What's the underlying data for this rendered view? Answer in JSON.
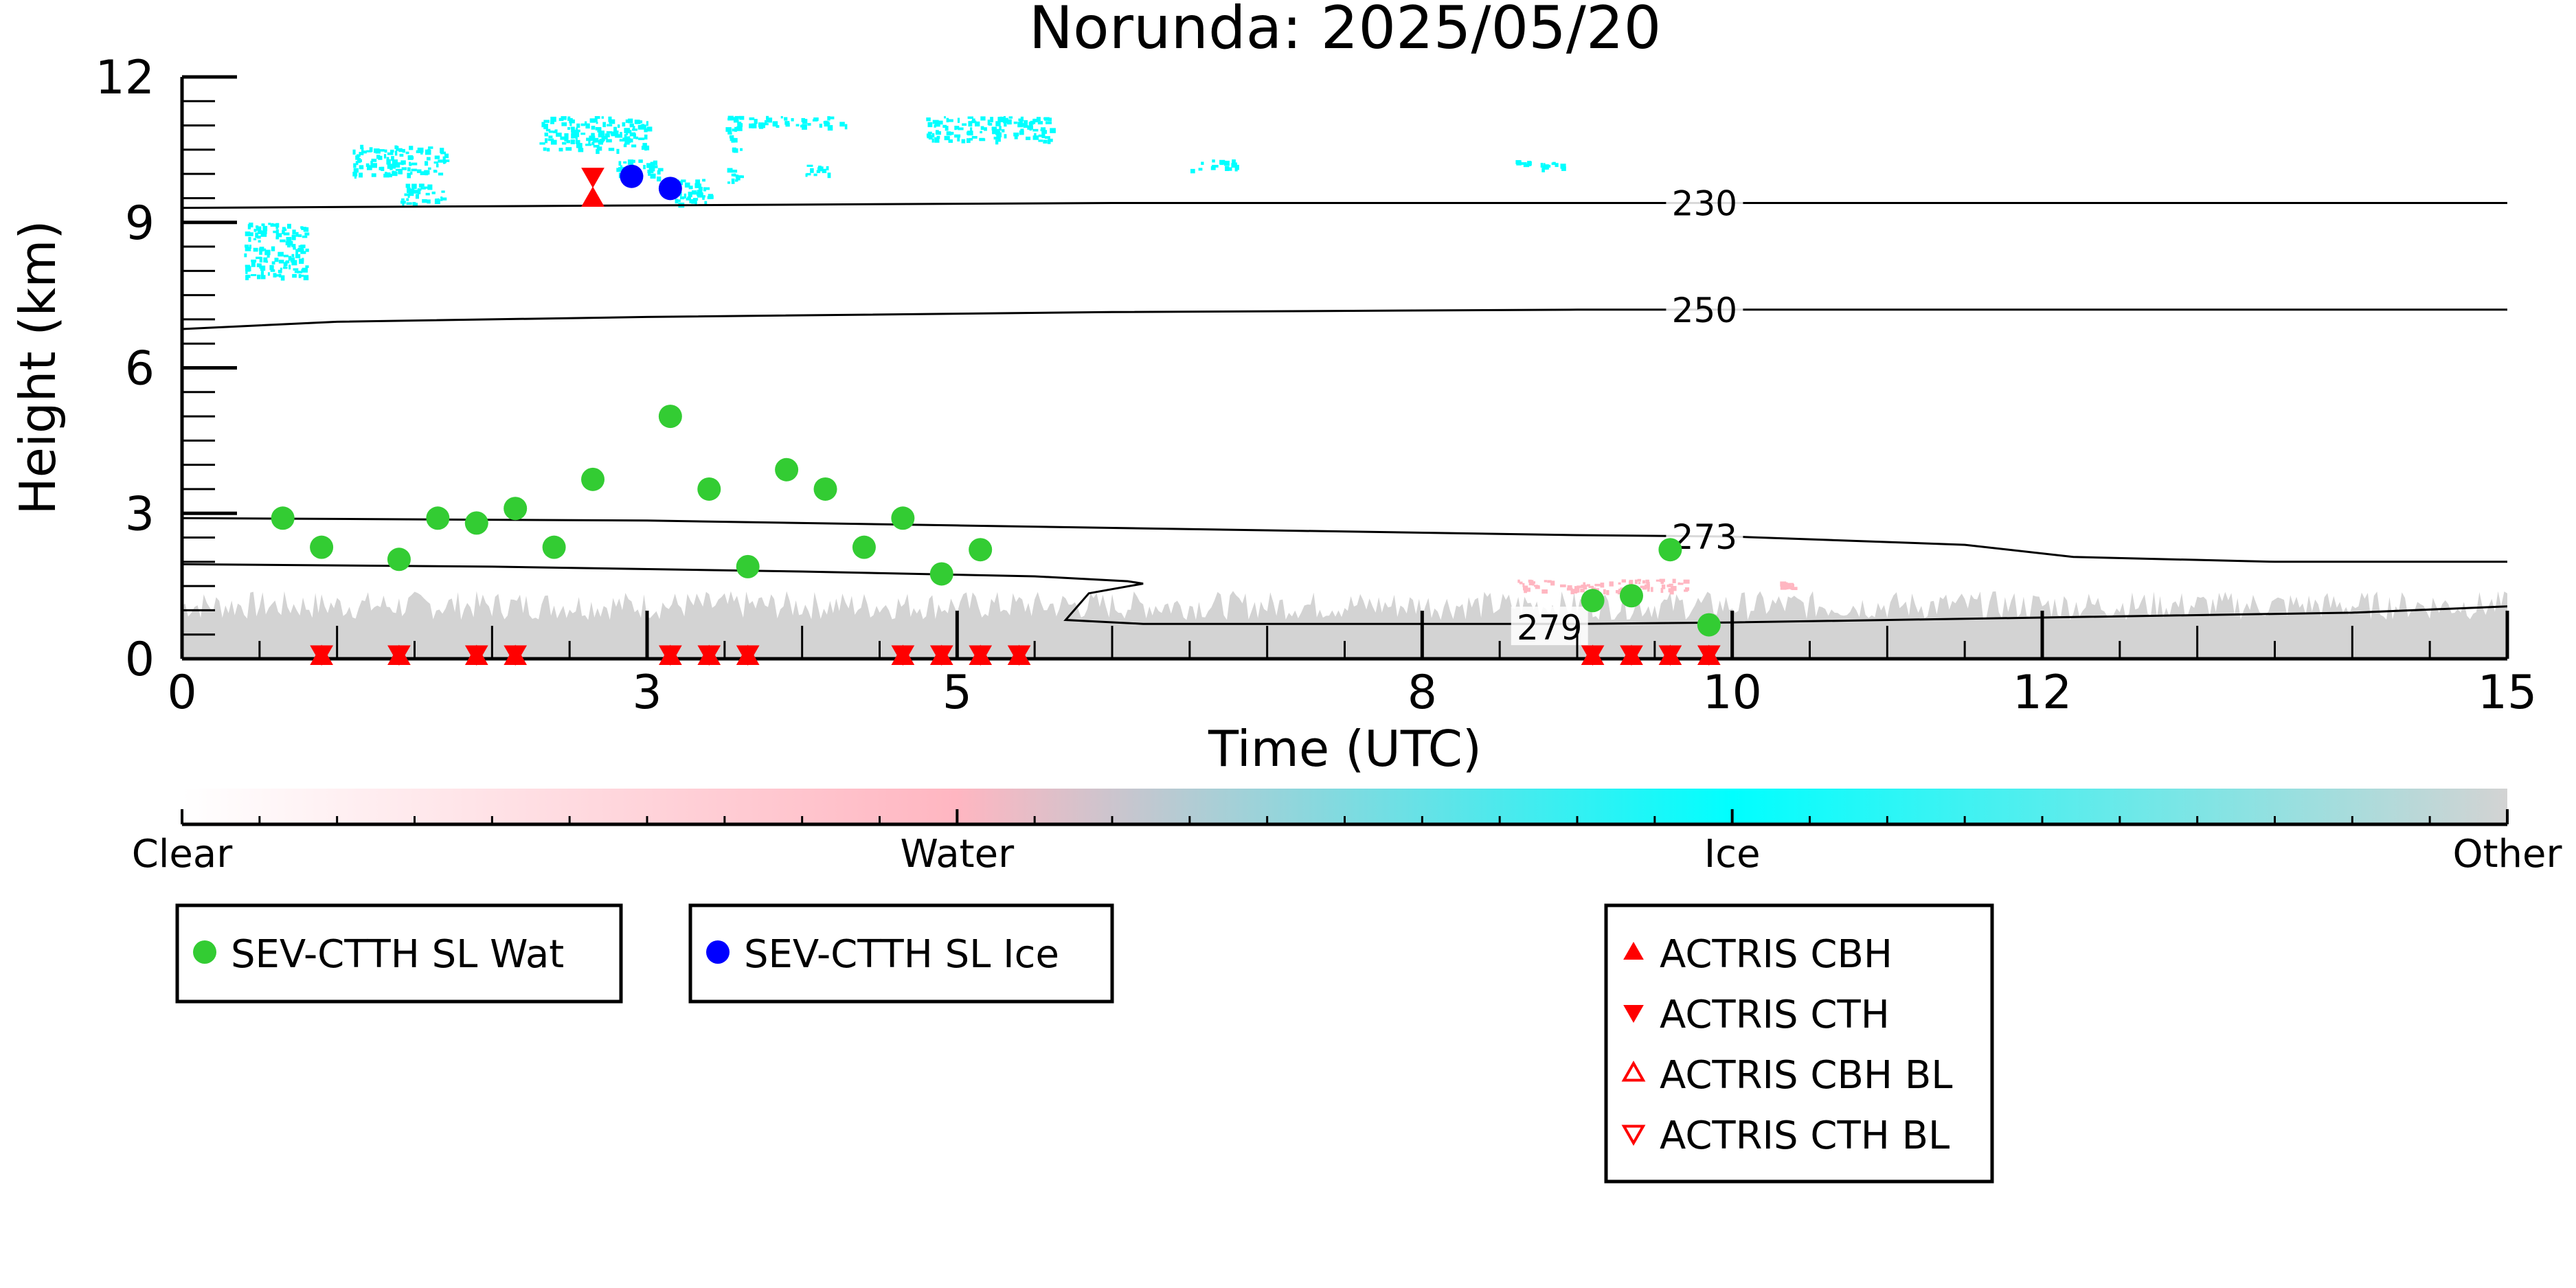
{
  "chart_data": {
    "type": "scatter",
    "title": "Norunda: 2025/05/20",
    "xlabel": "Time (UTC)",
    "ylabel": "Height (km)",
    "xlim": [
      0,
      15
    ],
    "ylim": [
      0,
      12
    ],
    "x_ticks": [
      0,
      3,
      5,
      8,
      10,
      12,
      15
    ],
    "y_ticks": [
      0,
      3,
      6,
      9,
      12
    ],
    "colorbar": {
      "labels": [
        "Clear",
        "Water",
        "Ice",
        "Other"
      ],
      "colors": [
        "#ffffff",
        "#ffb6c1",
        "#00ffff",
        "#d3d3d3"
      ]
    },
    "isotherms": [
      {
        "label": "230",
        "points": [
          [
            0,
            9.3
          ],
          [
            3,
            9.35
          ],
          [
            6,
            9.4
          ],
          [
            9,
            9.4
          ],
          [
            12,
            9.4
          ],
          [
            15,
            9.4
          ]
        ],
        "label_at": [
          9.6,
          9.4
        ]
      },
      {
        "label": "250",
        "points": [
          [
            0,
            6.8
          ],
          [
            1,
            6.95
          ],
          [
            3,
            7.05
          ],
          [
            6,
            7.15
          ],
          [
            9,
            7.2
          ],
          [
            12,
            7.2
          ],
          [
            15,
            7.2
          ]
        ],
        "label_at": [
          9.6,
          7.2
        ]
      },
      {
        "label": "273",
        "points": [
          [
            0,
            2.9
          ],
          [
            3,
            2.85
          ],
          [
            5,
            2.75
          ],
          [
            7,
            2.65
          ],
          [
            9,
            2.55
          ],
          [
            10,
            2.52
          ],
          [
            11.5,
            2.35
          ],
          [
            12.2,
            2.1
          ],
          [
            13.5,
            2.0
          ],
          [
            15,
            2.0
          ]
        ],
        "label_at": [
          9.6,
          2.52
        ]
      },
      {
        "label": "279",
        "points": [
          [
            0,
            1.95
          ],
          [
            2,
            1.9
          ],
          [
            4,
            1.8
          ],
          [
            5.5,
            1.7
          ],
          [
            6.1,
            1.6
          ],
          [
            6.2,
            1.55
          ],
          [
            5.85,
            1.35
          ],
          [
            5.7,
            0.8
          ],
          [
            6.2,
            0.72
          ],
          [
            8,
            0.72
          ],
          [
            9,
            0.72
          ],
          [
            10,
            0.75
          ],
          [
            12,
            0.85
          ],
          [
            14,
            0.95
          ],
          [
            15,
            1.08
          ]
        ],
        "label_at": [
          8.6,
          0.65
        ]
      }
    ],
    "background_fill": {
      "category": "Other",
      "x_range": [
        0,
        15
      ],
      "top_min": 0.8,
      "top_max": 1.4
    },
    "ice_regions": [
      {
        "x": [
          0.4,
          0.8
        ],
        "y": [
          7.9,
          9.0
        ]
      },
      {
        "x": [
          1.1,
          1.7
        ],
        "y": [
          10.0,
          10.6
        ]
      },
      {
        "x": [
          1.4,
          1.7
        ],
        "y": [
          9.4,
          9.8
        ]
      },
      {
        "x": [
          2.3,
          3.0
        ],
        "y": [
          10.5,
          11.2
        ]
      },
      {
        "x": [
          2.8,
          3.1
        ],
        "y": [
          9.9,
          10.3
        ]
      },
      {
        "x": [
          3.1,
          3.4
        ],
        "y": [
          9.4,
          9.9
        ]
      },
      {
        "x": [
          3.5,
          3.6
        ],
        "y": [
          9.8,
          10.2
        ]
      },
      {
        "x": [
          3.5,
          3.6
        ],
        "y": [
          10.5,
          11.0
        ]
      },
      {
        "x": [
          4.0,
          4.2
        ],
        "y": [
          10.0,
          10.2
        ]
      },
      {
        "x": [
          3.5,
          4.3
        ],
        "y": [
          11.0,
          11.2
        ]
      },
      {
        "x": [
          4.8,
          5.6
        ],
        "y": [
          10.7,
          11.2
        ]
      },
      {
        "x": [
          6.5,
          6.8
        ],
        "y": [
          10.1,
          10.3
        ]
      },
      {
        "x": [
          8.6,
          8.9
        ],
        "y": [
          10.1,
          10.3
        ]
      }
    ],
    "water_regions": [
      {
        "x": [
          8.6,
          9.7
        ],
        "y": [
          1.4,
          1.65
        ]
      },
      {
        "x": [
          10.3,
          10.4
        ],
        "y": [
          1.45,
          1.6
        ]
      }
    ],
    "series": [
      {
        "name": "SEV-CTTH SL Wat",
        "color": "#33cc33",
        "marker": "circle",
        "x": [
          0.65,
          0.9,
          1.4,
          1.65,
          1.9,
          2.15,
          2.4,
          2.65,
          3.15,
          3.4,
          3.65,
          3.9,
          4.15,
          4.4,
          4.65,
          4.9,
          5.15,
          9.1,
          9.35,
          9.6,
          9.85
        ],
        "y": [
          2.9,
          2.3,
          2.05,
          2.9,
          2.8,
          3.1,
          2.3,
          3.7,
          5.0,
          3.5,
          1.9,
          3.9,
          3.5,
          2.3,
          2.9,
          1.75,
          2.25,
          1.2,
          1.3,
          2.25,
          0.7
        ]
      },
      {
        "name": "SEV-CTTH SL Ice",
        "color": "#0000ff",
        "marker": "circle",
        "x": [
          2.9,
          3.15
        ],
        "y": [
          9.95,
          9.7
        ]
      },
      {
        "name": "ACTRIS CBH",
        "color": "#ff0000",
        "marker": "triangle-up",
        "x": [
          2.65,
          0.9,
          1.4,
          1.9,
          2.15,
          3.15,
          3.4,
          3.65,
          4.65,
          4.9,
          5.15,
          5.4,
          9.1,
          9.35,
          9.6,
          9.85
        ],
        "y": [
          9.5,
          0.05,
          0.05,
          0.05,
          0.05,
          0.05,
          0.05,
          0.05,
          0.05,
          0.05,
          0.05,
          0.05,
          0.05,
          0.05,
          0.05,
          0.05
        ]
      },
      {
        "name": "ACTRIS CTH",
        "color": "#ff0000",
        "marker": "triangle-down",
        "x": [
          2.65,
          0.9,
          1.4,
          1.9,
          2.15,
          3.15,
          3.4,
          3.65,
          4.65,
          4.9,
          5.15,
          5.4,
          9.1,
          9.35,
          9.6,
          9.85
        ],
        "y": [
          9.95,
          0.1,
          0.1,
          0.1,
          0.1,
          0.1,
          0.1,
          0.1,
          0.1,
          0.1,
          0.1,
          0.1,
          0.1,
          0.1,
          0.1,
          0.1
        ]
      },
      {
        "name": "ACTRIS CBH BL",
        "color": "#ff0000",
        "marker": "triangle-up-open",
        "x": [],
        "y": []
      },
      {
        "name": "ACTRIS CTH BL",
        "color": "#ff0000",
        "marker": "triangle-down-open",
        "x": [],
        "y": []
      }
    ],
    "legends": [
      {
        "entries": [
          "SEV-CTTH SL Wat"
        ]
      },
      {
        "entries": [
          "SEV-CTTH SL Ice"
        ]
      },
      {
        "entries": [
          "ACTRIS CBH",
          "ACTRIS CTH",
          "ACTRIS CBH BL",
          "ACTRIS CTH BL"
        ]
      }
    ]
  }
}
